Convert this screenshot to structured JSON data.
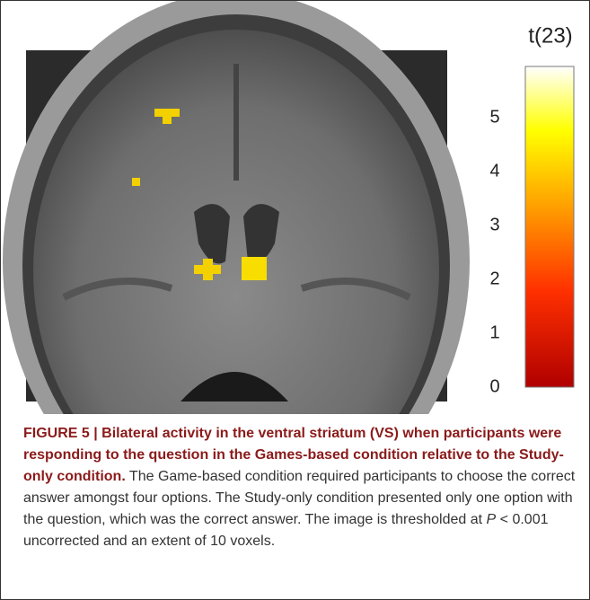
{
  "figure": {
    "colorbar": {
      "label": "t(23)",
      "lim": [
        0,
        5.95
      ],
      "ticks": [
        0,
        1,
        2,
        3,
        4,
        5
      ]
    },
    "caption": {
      "label": "FIGURE 5 | Bilateral activity in the ventral striatum (VS) when participants were responding to the question in the Games-based condition relative to the Study-only condition.",
      "text": "The Game-based condition required participants to choose the correct answer amongst four options. The Study-only condition presented only one option with the question, which was the correct answer. The image is thresholded at",
      "p_symbol": "P",
      "text_end": "< 0.001 uncorrected and an extent of 10 voxels."
    }
  }
}
